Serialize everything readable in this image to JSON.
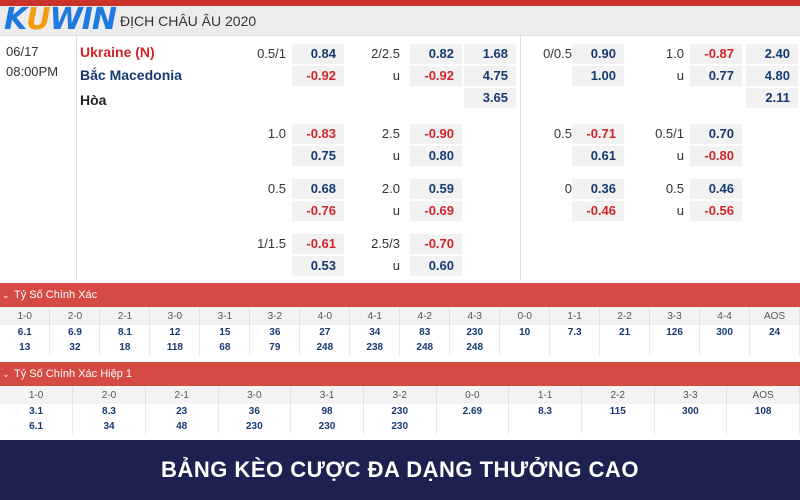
{
  "brand": {
    "logo_k": "K",
    "logo_u": "U",
    "logo_win": "WIN"
  },
  "league": {
    "title": "ĐỊCH CHÂU ÂU 2020"
  },
  "match": {
    "date": "06/17",
    "time": "08:00PM",
    "home": "Ukraine (N)",
    "away": "Bắc Macedonia",
    "draw": "Hòa"
  },
  "odds": {
    "ft_hdp": [
      {
        "line": "0.5/1",
        "top": "0.84",
        "bottom": "-0.92"
      },
      {
        "line": "1.0",
        "top": "-0.83",
        "bottom": "0.75"
      },
      {
        "line": "0.5",
        "top": "0.68",
        "bottom": "-0.76"
      },
      {
        "line": "1/1.5",
        "top": "-0.61",
        "bottom": "0.53"
      }
    ],
    "ft_ou": [
      {
        "line": "2/2.5",
        "u": "u",
        "top": "0.82",
        "bottom": "-0.92"
      },
      {
        "line": "2.5",
        "u": "u",
        "top": "-0.90",
        "bottom": "0.80"
      },
      {
        "line": "2.0",
        "u": "u",
        "top": "0.59",
        "bottom": "-0.69"
      },
      {
        "line": "2.5/3",
        "u": "u",
        "top": "-0.70",
        "bottom": "0.60"
      }
    ],
    "ft_1x2": [
      "1.68",
      "4.75",
      "3.65"
    ],
    "h1_hdp": [
      {
        "line": "0/0.5",
        "top": "0.90",
        "bottom": "1.00"
      },
      {
        "line": "0.5",
        "top": "-0.71",
        "bottom": "0.61"
      },
      {
        "line": "0",
        "top": "0.36",
        "bottom": "-0.46"
      }
    ],
    "h1_ou": [
      {
        "line": "1.0",
        "u": "u",
        "top": "-0.87",
        "bottom": "0.77"
      },
      {
        "line": "0.5/1",
        "u": "u",
        "top": "0.70",
        "bottom": "-0.80"
      },
      {
        "line": "0.5",
        "u": "u",
        "top": "0.46",
        "bottom": "-0.56"
      }
    ],
    "h1_1x2": [
      "2.40",
      "4.80",
      "2.11"
    ]
  },
  "correct_score": {
    "title": "Tỷ Số Chính Xác",
    "headers": [
      "1-0",
      "2-0",
      "2-1",
      "3-0",
      "3-1",
      "3-2",
      "4-0",
      "4-1",
      "4-2",
      "4-3",
      "0-0",
      "1-1",
      "2-2",
      "3-3",
      "4-4",
      "AOS"
    ],
    "row1": [
      "6.1",
      "6.9",
      "8.1",
      "12",
      "15",
      "36",
      "27",
      "34",
      "83",
      "230",
      "10",
      "7.3",
      "21",
      "126",
      "300",
      "24"
    ],
    "row2": [
      "13",
      "32",
      "18",
      "118",
      "68",
      "79",
      "248",
      "238",
      "248",
      "248",
      "",
      "",
      "",
      "",
      "",
      ""
    ]
  },
  "correct_score_h1": {
    "title": "Tỷ Số Chính Xác Hiệp 1",
    "headers": [
      "1-0",
      "2-0",
      "2-1",
      "3-0",
      "3-1",
      "3-2",
      "0-0",
      "1-1",
      "2-2",
      "3-3",
      "AOS"
    ],
    "row1": [
      "3.1",
      "8.3",
      "23",
      "36",
      "98",
      "230",
      "2.69",
      "8.3",
      "115",
      "300",
      "108"
    ],
    "row2": [
      "6.1",
      "34",
      "48",
      "230",
      "230",
      "230",
      "",
      "",
      "",
      "",
      ""
    ]
  },
  "banner": {
    "text": "BẢNG KÈO CƯỢC ĐA DẠNG THƯỞNG CAO"
  },
  "colors": {
    "accent_red": "#d54a42",
    "navy": "#1c2150",
    "odd_blue": "#173a73",
    "odd_red": "#d0262b"
  }
}
